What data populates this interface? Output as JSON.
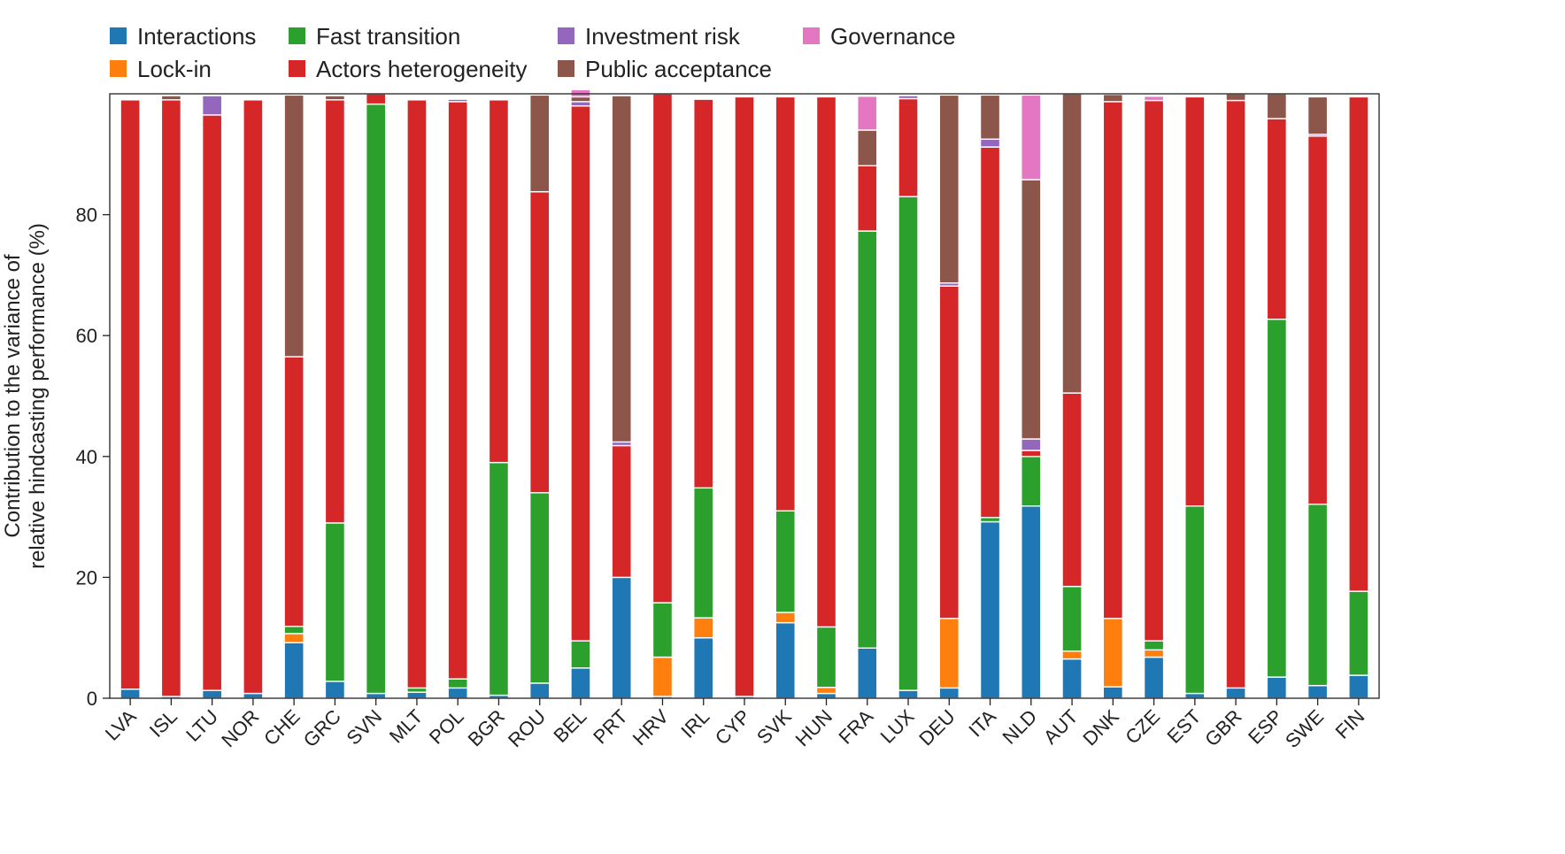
{
  "chart_data": {
    "type": "bar",
    "stacked": true,
    "title": "",
    "xlabel": "",
    "ylabel_lines": [
      "Contribution to the variance of",
      "relative hindcasting performance (%)"
    ],
    "ylim": [
      0,
      100
    ],
    "yticks": [
      0,
      20,
      40,
      60,
      80
    ],
    "grid": false,
    "legend_position": "top-left",
    "categories": [
      "LVA",
      "ISL",
      "LTU",
      "NOR",
      "CHE",
      "GRC",
      "SVN",
      "MLT",
      "POL",
      "BGR",
      "ROU",
      "BEL",
      "PRT",
      "HRV",
      "IRL",
      "CYP",
      "SVK",
      "HUN",
      "FRA",
      "LUX",
      "DEU",
      "ITA",
      "NLD",
      "AUT",
      "DNK",
      "CZE",
      "EST",
      "GBR",
      "ESP",
      "SWE",
      "FIN"
    ],
    "series": [
      {
        "name": "Interactions",
        "color": "#1f77b4",
        "values": [
          1.5,
          0.3,
          1.3,
          0.8,
          9.2,
          2.8,
          0.8,
          1.0,
          1.7,
          0.5,
          2.5,
          5.0,
          20.0,
          0.3,
          10.0,
          0.3,
          12.5,
          0.8,
          8.3,
          1.3,
          1.7,
          29.2,
          31.8,
          6.5,
          1.9,
          6.8,
          0.8,
          1.7,
          3.5,
          2.1,
          3.8
        ]
      },
      {
        "name": "Lock-in",
        "color": "#ff7f0e",
        "values": [
          0,
          0,
          0,
          0,
          1.5,
          0,
          0,
          0,
          0,
          0,
          0,
          0,
          0,
          6.5,
          3.3,
          0,
          1.7,
          1.0,
          0,
          0,
          11.5,
          0,
          0,
          1.3,
          11.3,
          1.2,
          0,
          0,
          0,
          0,
          0
        ]
      },
      {
        "name": "Fast transition",
        "color": "#2ca02c",
        "values": [
          0,
          0,
          0,
          0,
          1.2,
          26.2,
          97.5,
          0.7,
          1.5,
          38.5,
          31.5,
          4.5,
          0,
          9.0,
          21.5,
          0,
          16.8,
          10.0,
          69.0,
          81.7,
          0,
          0.7,
          8.2,
          10.7,
          0,
          1.5,
          31.0,
          0,
          59.2,
          30.0,
          13.9
        ]
      },
      {
        "name": "Actors heterogeneity",
        "color": "#d62728",
        "values": [
          97.5,
          98.7,
          95.2,
          98.2,
          44.6,
          70.0,
          1.7,
          97.3,
          95.5,
          60.0,
          49.8,
          88.5,
          21.8,
          84.2,
          64.3,
          99.2,
          68.5,
          87.7,
          10.8,
          16.2,
          55.0,
          61.3,
          1.0,
          32.0,
          85.5,
          89.4,
          67.7,
          97.2,
          33.2,
          60.9,
          81.8
        ]
      },
      {
        "name": "Investment risk",
        "color": "#9467bd",
        "values": [
          0,
          0,
          3.2,
          0,
          0,
          0,
          0,
          0,
          0.4,
          0,
          0,
          0.7,
          0.6,
          0,
          0,
          0,
          0,
          0,
          0,
          0.5,
          0.5,
          1.3,
          1.9,
          0,
          0,
          0,
          0,
          0,
          0,
          0.3,
          0
        ]
      },
      {
        "name": "Public acceptance",
        "color": "#8c564b",
        "values": [
          0,
          0.7,
          0,
          0,
          43.3,
          0.7,
          0,
          0,
          0,
          0,
          16.0,
          0.8,
          57.3,
          0,
          0,
          0,
          0,
          0,
          5.9,
          0,
          31.1,
          7.3,
          42.9,
          49.5,
          1.2,
          0,
          0,
          1.1,
          4.1,
          6.2,
          0
        ]
      },
      {
        "name": "Governance",
        "color": "#e377c2",
        "values": [
          0,
          0,
          0,
          0,
          0,
          0,
          0,
          0,
          0,
          0,
          0,
          1.2,
          0,
          0,
          0,
          0,
          0,
          0,
          5.6,
          0,
          0,
          0,
          14.0,
          0,
          0,
          0.7,
          0,
          0,
          0,
          0,
          0
        ]
      }
    ]
  }
}
